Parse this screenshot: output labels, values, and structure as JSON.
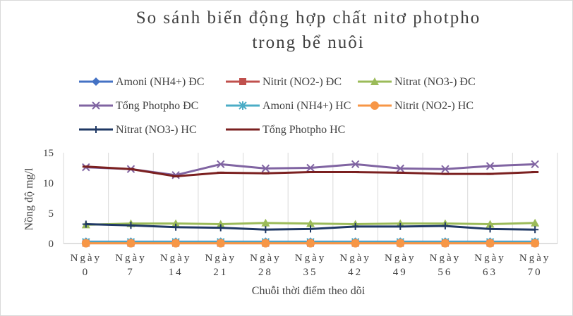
{
  "chart_data": {
    "type": "line",
    "title_lines": [
      "So sánh biến động hợp chất nitơ photpho",
      "trong bể nuôi"
    ],
    "xlabel": "Chuỗi thời điểm theo dõi",
    "ylabel": "Nồng độ mg/l",
    "ylim": [
      0,
      15
    ],
    "yticks": [
      0,
      5,
      10,
      15
    ],
    "categories": [
      [
        "Ngày",
        "0"
      ],
      [
        "Ngày",
        "7"
      ],
      [
        "Ngày",
        "14"
      ],
      [
        "Ngày",
        "21"
      ],
      [
        "Ngày",
        "28"
      ],
      [
        "Ngày",
        "35"
      ],
      [
        "Ngày",
        "42"
      ],
      [
        "Ngày",
        "49"
      ],
      [
        "Ngày",
        "56"
      ],
      [
        "Ngày",
        "63"
      ],
      [
        "Ngày",
        "70"
      ]
    ],
    "grid": "vertical",
    "legend_position": "top",
    "series": [
      {
        "name": "Amoni (NH4+) ĐC",
        "color": "#4472C4",
        "marker": "diamond",
        "values": [
          0.3,
          0.3,
          0.3,
          0.3,
          0.3,
          0.3,
          0.3,
          0.3,
          0.3,
          0.3,
          0.3
        ]
      },
      {
        "name": "Nitrit (NO2-) ĐC",
        "color": "#C0504D",
        "marker": "square",
        "values": [
          0.05,
          0.05,
          0.05,
          0.05,
          0.05,
          0.05,
          0.05,
          0.05,
          0.05,
          0.05,
          0.05
        ]
      },
      {
        "name": "Nitrat (NO3-) ĐC",
        "color": "#9BBB59",
        "marker": "triangle",
        "values": [
          3.1,
          3.3,
          3.3,
          3.2,
          3.4,
          3.3,
          3.2,
          3.3,
          3.3,
          3.2,
          3.4
        ]
      },
      {
        "name": "Tổng Photpho ĐC",
        "color": "#8064A2",
        "marker": "x",
        "values": [
          12.6,
          12.3,
          11.3,
          13.1,
          12.4,
          12.5,
          13.1,
          12.4,
          12.3,
          12.8,
          13.1
        ]
      },
      {
        "name": "Amoni (NH4+) HC",
        "color": "#4BACC6",
        "marker": "star",
        "values": [
          0.25,
          0.25,
          0.25,
          0.25,
          0.25,
          0.25,
          0.25,
          0.25,
          0.25,
          0.25,
          0.25
        ]
      },
      {
        "name": "Nitrit (NO2-) HC",
        "color": "#F79646",
        "marker": "circle",
        "values": [
          0.05,
          0.05,
          0.05,
          0.05,
          0.05,
          0.05,
          0.05,
          0.05,
          0.05,
          0.05,
          0.05
        ]
      },
      {
        "name": "Nitrat (NO3-) HC",
        "color": "#1F3864",
        "marker": "plus",
        "values": [
          3.2,
          3.0,
          2.7,
          2.6,
          2.3,
          2.4,
          2.8,
          2.8,
          2.9,
          2.4,
          2.3
        ]
      },
      {
        "name": "Tổng Photpho HC",
        "color": "#7B2020",
        "marker": "dash",
        "values": [
          12.7,
          12.3,
          11.1,
          11.7,
          11.6,
          11.8,
          11.8,
          11.7,
          11.5,
          11.5,
          11.8
        ]
      }
    ]
  }
}
